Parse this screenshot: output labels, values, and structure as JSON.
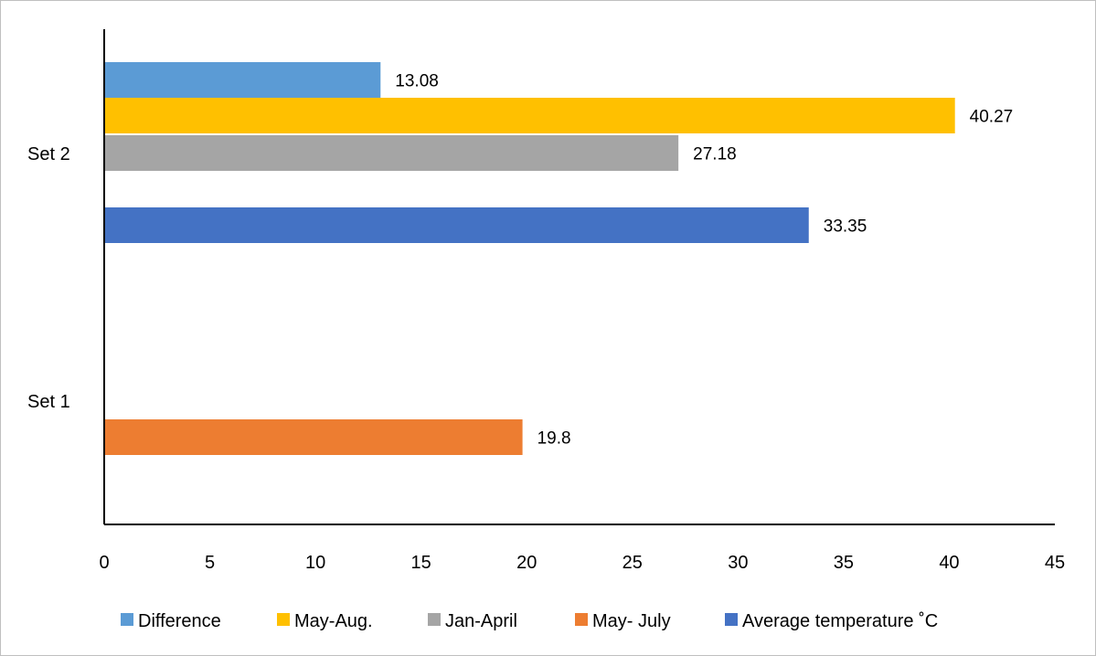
{
  "chart_data": {
    "type": "bar",
    "orientation": "horizontal",
    "categories": [
      "Set 1",
      "Set 2"
    ],
    "xlim": [
      0,
      45
    ],
    "x_ticks": [
      0,
      5,
      10,
      15,
      20,
      25,
      30,
      35,
      40,
      45
    ],
    "grid": false,
    "legend_position": "bottom",
    "series": [
      {
        "name": "Difference",
        "color": "#5b9bd5",
        "values": [
          null,
          13.08
        ],
        "labels": [
          "",
          "13.08"
        ]
      },
      {
        "name": "May-Aug.",
        "color": "#ffc000",
        "values": [
          null,
          40.27
        ],
        "labels": [
          "",
          "40.27"
        ]
      },
      {
        "name": "Jan-April",
        "color": "#a5a5a5",
        "values": [
          null,
          27.18
        ],
        "labels": [
          "",
          "27.18"
        ]
      },
      {
        "name": "May- July",
        "color": "#ed7d31",
        "values": [
          19.8,
          null
        ],
        "labels": [
          "19.8",
          ""
        ]
      },
      {
        "name": "Average temperature ˚C",
        "color": "#4472c4",
        "values": [
          null,
          33.35
        ],
        "labels": [
          "",
          "33.35"
        ]
      }
    ]
  }
}
